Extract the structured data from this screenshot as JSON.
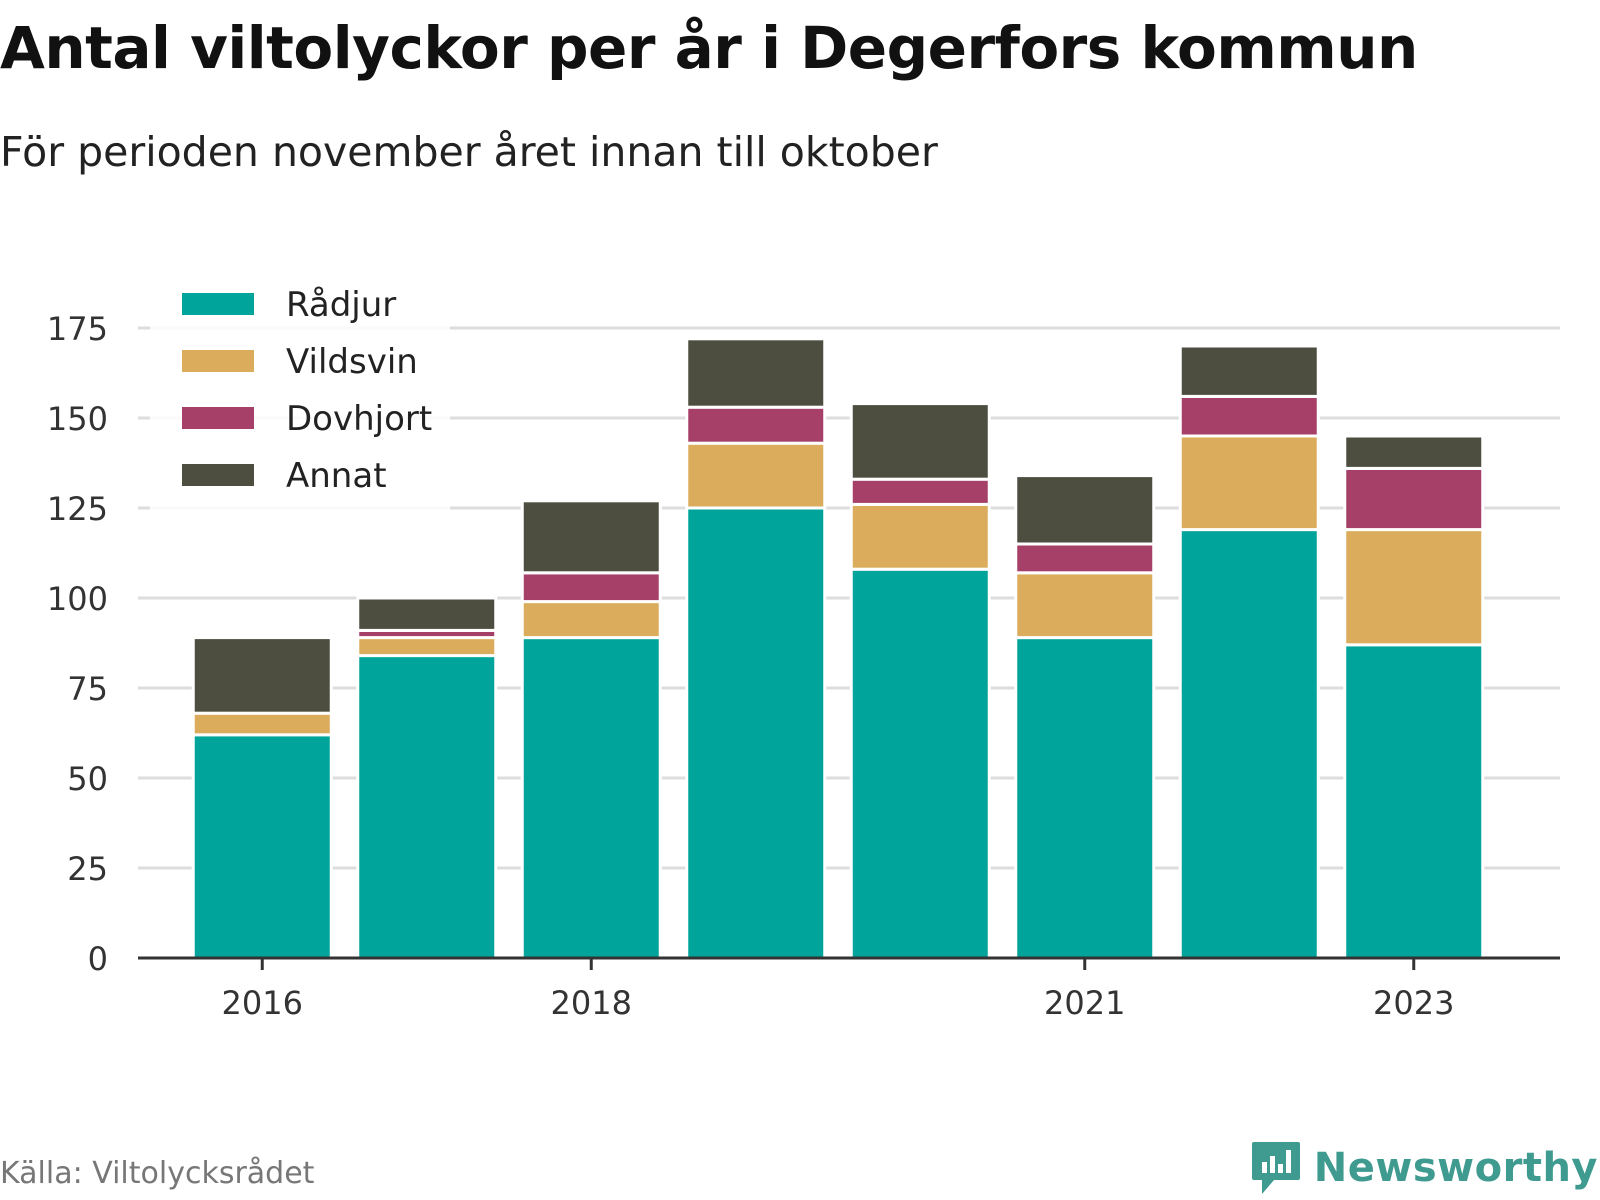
{
  "title": "Antal viltolyckor per år i Degerfors kommun",
  "subtitle": "För perioden november året innan till oktober",
  "source": "Källa: Viltolycksrådet",
  "brand": "Newsworthy",
  "colors": {
    "Rådjur": "#00a49a",
    "Vildsvin": "#dbac5b",
    "Dovhjort": "#a64068",
    "Annat": "#4d4e40",
    "grid": "#dddddd",
    "axis": "#333333",
    "brand": "#3f9a8f"
  },
  "chart_data": {
    "type": "bar",
    "stacked": true,
    "categories": [
      "2016",
      "2017",
      "2018",
      "2019",
      "2020",
      "2021",
      "2022",
      "2023"
    ],
    "x_tick_labels": [
      "2016",
      "2018",
      "2021",
      "2023"
    ],
    "series": [
      {
        "name": "Rådjur",
        "values": [
          62,
          84,
          89,
          125,
          108,
          89,
          119,
          87
        ]
      },
      {
        "name": "Vildsvin",
        "values": [
          6,
          5,
          10,
          18,
          18,
          18,
          26,
          32
        ]
      },
      {
        "name": "Dovhjort",
        "values": [
          0,
          2,
          8,
          10,
          7,
          8,
          11,
          17
        ]
      },
      {
        "name": "Annat",
        "values": [
          21,
          9,
          20,
          19,
          21,
          19,
          14,
          9
        ]
      }
    ],
    "y_ticks": [
      0,
      25,
      50,
      75,
      100,
      125,
      150,
      175
    ],
    "ylim": [
      0,
      185
    ],
    "grid": true,
    "legend": "top-left"
  }
}
